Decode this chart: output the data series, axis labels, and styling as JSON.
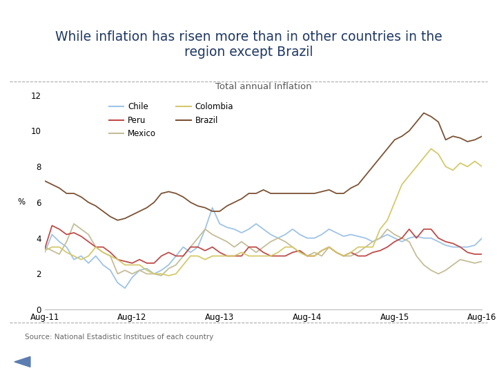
{
  "title_line1": "While inflation has risen more than in other countries in the",
  "title_line2": "region except Brazil",
  "subtitle": "Total annual Inflation",
  "ylabel": "%",
  "source": "Source: National Estadistic Institues of each country",
  "x_labels": [
    "Aug-11",
    "Aug-12",
    "Aug-13",
    "Aug-14",
    "Aug-15",
    "Aug-16"
  ],
  "ylim": [
    0,
    12
  ],
  "yticks": [
    0,
    2,
    4,
    6,
    8,
    10,
    12
  ],
  "title_color": "#1F3864",
  "background_color": "#FFFFFF",
  "top_bar_color": "#1F3864",
  "separator_color": "#AAAAAA",
  "series": {
    "Chile": {
      "color": "#9DC3E6",
      "data": [
        3.2,
        4.2,
        3.8,
        3.5,
        2.8,
        3.0,
        2.6,
        3.0,
        2.5,
        2.2,
        1.5,
        1.2,
        1.8,
        2.2,
        2.3,
        2.0,
        2.2,
        2.5,
        3.0,
        3.5,
        3.2,
        3.5,
        4.5,
        5.7,
        4.8,
        4.6,
        4.5,
        4.3,
        4.5,
        4.8,
        4.5,
        4.2,
        4.0,
        4.2,
        4.5,
        4.2,
        4.0,
        4.0,
        4.2,
        4.5,
        4.3,
        4.1,
        4.2,
        4.1,
        4.0,
        3.8,
        4.0,
        4.2,
        4.0,
        3.8,
        4.0,
        4.1,
        4.0,
        4.0,
        3.8,
        3.6,
        3.5,
        3.5,
        3.5,
        3.6,
        4.0
      ]
    },
    "Mexico": {
      "color": "#C4BD97",
      "data": [
        3.5,
        3.3,
        3.1,
        3.8,
        4.8,
        4.5,
        4.2,
        3.5,
        3.2,
        3.0,
        2.0,
        2.2,
        2.0,
        2.2,
        2.0,
        2.0,
        1.9,
        2.3,
        2.5,
        3.0,
        3.5,
        4.0,
        4.5,
        4.2,
        4.0,
        3.8,
        3.5,
        3.8,
        3.5,
        3.2,
        3.5,
        3.8,
        4.0,
        3.8,
        3.5,
        3.2,
        3.0,
        3.2,
        3.0,
        3.5,
        3.2,
        3.0,
        3.0,
        3.2,
        3.5,
        3.8,
        4.0,
        4.5,
        4.2,
        4.0,
        3.8,
        3.0,
        2.5,
        2.2,
        2.0,
        2.2,
        2.5,
        2.8,
        2.7,
        2.6,
        2.7
      ]
    },
    "Brazil": {
      "color": "#7B5133",
      "data": [
        7.2,
        7.0,
        6.8,
        6.5,
        6.5,
        6.3,
        6.0,
        5.8,
        5.5,
        5.2,
        5.0,
        5.1,
        5.3,
        5.5,
        5.7,
        6.0,
        6.5,
        6.6,
        6.5,
        6.3,
        6.0,
        5.8,
        5.7,
        5.5,
        5.5,
        5.8,
        6.0,
        6.2,
        6.5,
        6.5,
        6.7,
        6.5,
        6.5,
        6.5,
        6.5,
        6.5,
        6.5,
        6.5,
        6.6,
        6.7,
        6.5,
        6.5,
        6.8,
        7.0,
        7.5,
        8.0,
        8.5,
        9.0,
        9.5,
        9.7,
        10.0,
        10.5,
        11.0,
        10.8,
        10.5,
        9.5,
        9.7,
        9.6,
        9.4,
        9.5,
        9.7
      ]
    },
    "Peru": {
      "color": "#BE4B48",
      "data": [
        3.4,
        4.7,
        4.5,
        4.2,
        4.3,
        4.1,
        3.8,
        3.5,
        3.5,
        3.2,
        2.8,
        2.7,
        2.6,
        2.8,
        2.6,
        2.6,
        3.0,
        3.2,
        3.0,
        3.0,
        3.5,
        3.5,
        3.3,
        3.5,
        3.2,
        3.0,
        3.0,
        3.0,
        3.5,
        3.5,
        3.2,
        3.0,
        3.0,
        3.0,
        3.2,
        3.3,
        3.0,
        3.0,
        3.3,
        3.5,
        3.2,
        3.0,
        3.2,
        3.0,
        3.0,
        3.2,
        3.3,
        3.5,
        3.8,
        4.0,
        4.5,
        4.0,
        4.5,
        4.5,
        4.0,
        3.8,
        3.7,
        3.5,
        3.2,
        3.1,
        3.1
      ]
    },
    "Colombia": {
      "color": "#D4C96A",
      "data": [
        3.3,
        3.5,
        3.5,
        3.2,
        3.0,
        2.8,
        3.0,
        3.5,
        3.2,
        3.0,
        2.8,
        2.5,
        2.5,
        2.5,
        2.2,
        2.0,
        2.0,
        1.9,
        2.0,
        2.5,
        3.0,
        3.0,
        2.8,
        3.0,
        3.0,
        3.0,
        3.0,
        3.2,
        3.0,
        3.0,
        3.0,
        3.0,
        3.2,
        3.5,
        3.5,
        3.2,
        3.0,
        3.0,
        3.3,
        3.5,
        3.2,
        3.0,
        3.2,
        3.5,
        3.5,
        3.5,
        4.5,
        5.0,
        6.0,
        7.0,
        7.5,
        8.0,
        8.5,
        9.0,
        8.7,
        8.0,
        7.8,
        8.2,
        8.0,
        8.3,
        8.0
      ]
    }
  },
  "legend_order": [
    "Chile",
    "Peru",
    "Mexico",
    "Colombia",
    "Brazil"
  ],
  "legend_ncol": 2
}
